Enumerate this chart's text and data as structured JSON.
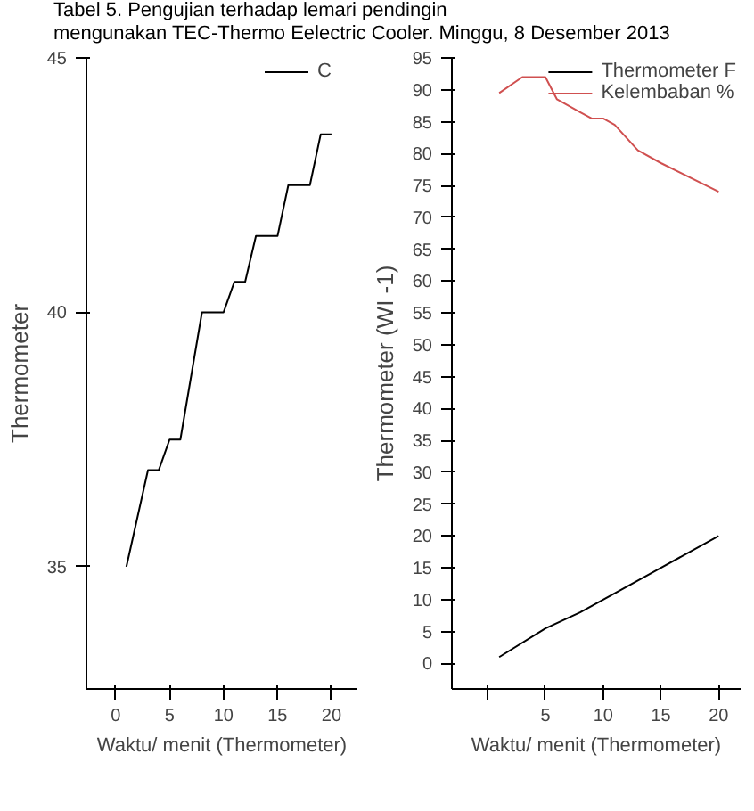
{
  "chart_data": [
    {
      "type": "line",
      "title": "Tabel 5. Pengujian terhadap lemari pendingin\nmengunakan TEC-Thermo Eelectric Cooler. Minggu, 8 Desember 2013",
      "xlabel": "Waktu/ menit (Thermometer)",
      "ylabel": "Thermometer",
      "xlim": [
        -2.7,
        22.4
      ],
      "xticks": [
        0,
        5,
        10,
        15,
        20
      ],
      "ylim": [
        32.6,
        45
      ],
      "yticks": [
        35,
        40,
        45
      ],
      "grid": false,
      "legend": "top right",
      "series": [
        {
          "name": "C",
          "color": "#000000",
          "x": [
            1,
            3,
            4,
            5,
            6,
            8,
            10,
            11,
            12,
            13,
            15,
            16,
            18,
            19,
            20
          ],
          "values": [
            35.0,
            36.9,
            36.9,
            37.5,
            37.5,
            40.0,
            40.0,
            40.6,
            40.6,
            41.5,
            41.5,
            42.5,
            42.5,
            43.5,
            43.5
          ]
        }
      ]
    },
    {
      "type": "line",
      "xlabel": "Waktu/ menit (Thermometer)",
      "ylabel": "Thermometer (WI -1)",
      "xlim": [
        -3.1,
        21.9
      ],
      "xticks": [
        {
          "value": 0,
          "label": null
        },
        5,
        10,
        15,
        20
      ],
      "ylim": [
        -4,
        95
      ],
      "yticks": [
        0,
        5,
        10,
        15,
        20,
        25,
        30,
        35,
        40,
        45,
        50,
        55,
        60,
        65,
        70,
        75,
        80,
        85,
        90,
        95
      ],
      "grid": false,
      "legend": "top right",
      "series": [
        {
          "name": "Thermometer F",
          "color": "#000000",
          "x": [
            1,
            5,
            8,
            10,
            15,
            20
          ],
          "values": [
            1,
            5.5,
            8,
            10,
            15,
            20
          ]
        },
        {
          "name": "Kelembaban %",
          "color": "#d05050",
          "x": [
            1,
            3,
            5,
            6,
            8,
            9,
            10,
            11,
            13,
            15,
            20
          ],
          "values": [
            89.5,
            92,
            92,
            88.5,
            86.5,
            85.5,
            85.5,
            84.5,
            80.5,
            78.5,
            74
          ]
        }
      ]
    }
  ]
}
